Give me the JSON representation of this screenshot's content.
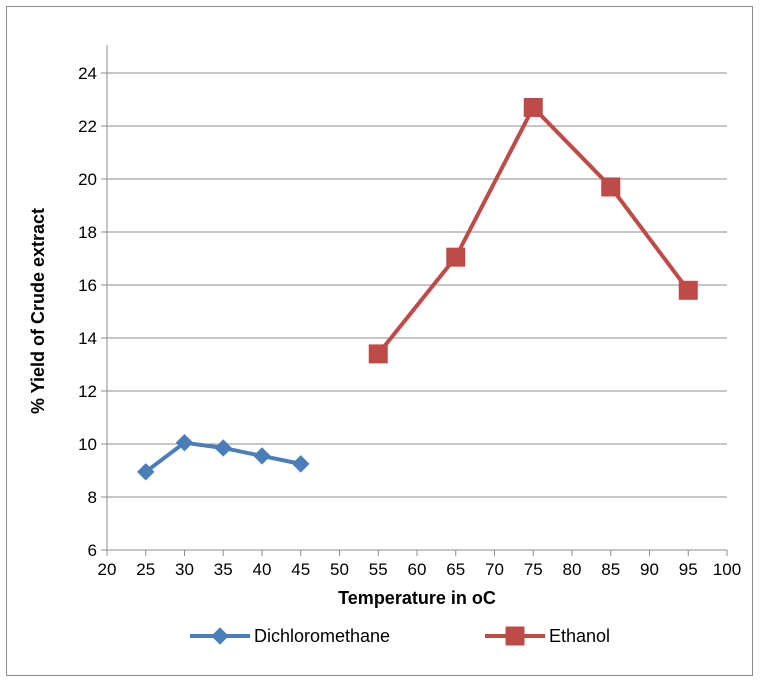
{
  "chart_data": {
    "type": "line",
    "xlabel": "Temperature in oC",
    "ylabel": "% Yield of Crude extract",
    "xlim": [
      20,
      100
    ],
    "ylim": [
      6,
      24
    ],
    "x_ticks": [
      20,
      25,
      30,
      35,
      40,
      45,
      50,
      55,
      60,
      65,
      70,
      75,
      80,
      85,
      90,
      95,
      100
    ],
    "y_ticks": [
      6,
      8,
      10,
      12,
      14,
      16,
      18,
      20,
      22,
      24
    ],
    "grid": "horizontal",
    "legend": "bottom",
    "series": [
      {
        "name": "Dichloromethane",
        "color": "#4a7ebb",
        "marker": "diamond",
        "points": [
          [
            25,
            8.95
          ],
          [
            30,
            10.05
          ],
          [
            35,
            9.85
          ],
          [
            40,
            9.55
          ],
          [
            45,
            9.25
          ]
        ]
      },
      {
        "name": "Ethanol",
        "color": "#be4b48",
        "marker": "square",
        "points": [
          [
            55,
            13.4
          ],
          [
            65,
            17.05
          ],
          [
            75,
            22.7
          ],
          [
            85,
            19.7
          ],
          [
            95,
            15.8
          ]
        ]
      }
    ]
  }
}
